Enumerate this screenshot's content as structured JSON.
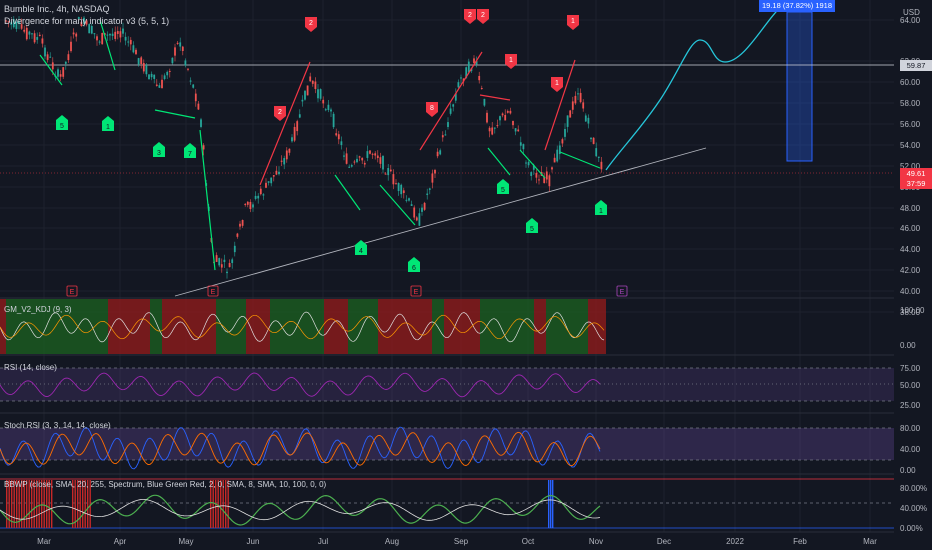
{
  "header": {
    "symbol_line": "Bumble Inc., 4h, NASDAQ",
    "indicator_line": "Divergence for many indicator v3 (5, 5, 1)",
    "currency": "USD"
  },
  "price_axis": {
    "ticks": [
      "64.00",
      "62.00",
      "60.00",
      "58.00",
      "56.00",
      "54.00",
      "52.00",
      "50.00",
      "48.00",
      "46.00",
      "44.00",
      "42.00",
      "40.00",
      "38.00"
    ],
    "horizontal_line_label": "59.87",
    "last_price_label": "49.61",
    "countdown_label": "37:59",
    "colors": {
      "horizontal_line_tag": "#d1d4dc",
      "last_price_tag": "#f23645"
    }
  },
  "measure_box": {
    "label": "19.18 (37.82%) 1918",
    "color": "#2962ff"
  },
  "time_axis": [
    "Mar",
    "Apr",
    "May",
    "Jun",
    "Jul",
    "Aug",
    "Sep",
    "Oct",
    "Nov",
    "Dec",
    "2022",
    "Feb",
    "Mar"
  ],
  "event_markers": [
    "E",
    "E",
    "E",
    "E"
  ],
  "signals": {
    "sell": [
      "2",
      "2",
      "2",
      "8",
      "1",
      "1",
      "2",
      "1"
    ],
    "buy": [
      "5",
      "1",
      "3",
      "7",
      "4",
      "6",
      "5",
      "5",
      "1"
    ],
    "colors": {
      "buy": "#00e676",
      "sell": "#f23645"
    }
  },
  "panes": {
    "kdj": {
      "title": "GM_V2_KDJ (9, 3)",
      "ticks": [
        "100.00",
        "0.00"
      ]
    },
    "rsi": {
      "title": "RSI (14, close)",
      "ticks": [
        "75.00",
        "50.00",
        "25.00"
      ]
    },
    "stoch": {
      "title": "Stoch RSI (3, 3, 14, 14, close)",
      "ticks": [
        "80.00",
        "40.00",
        "0.00"
      ]
    },
    "bbwp": {
      "title": "BBWP (close, SMA, 20, 255, Spectrum, Blue Green Red, 2, 0, SMA, 8, SMA, 10, 100, 0, 0)",
      "ticks": [
        "80.00%",
        "40.00%",
        "0.00%"
      ]
    }
  }
}
